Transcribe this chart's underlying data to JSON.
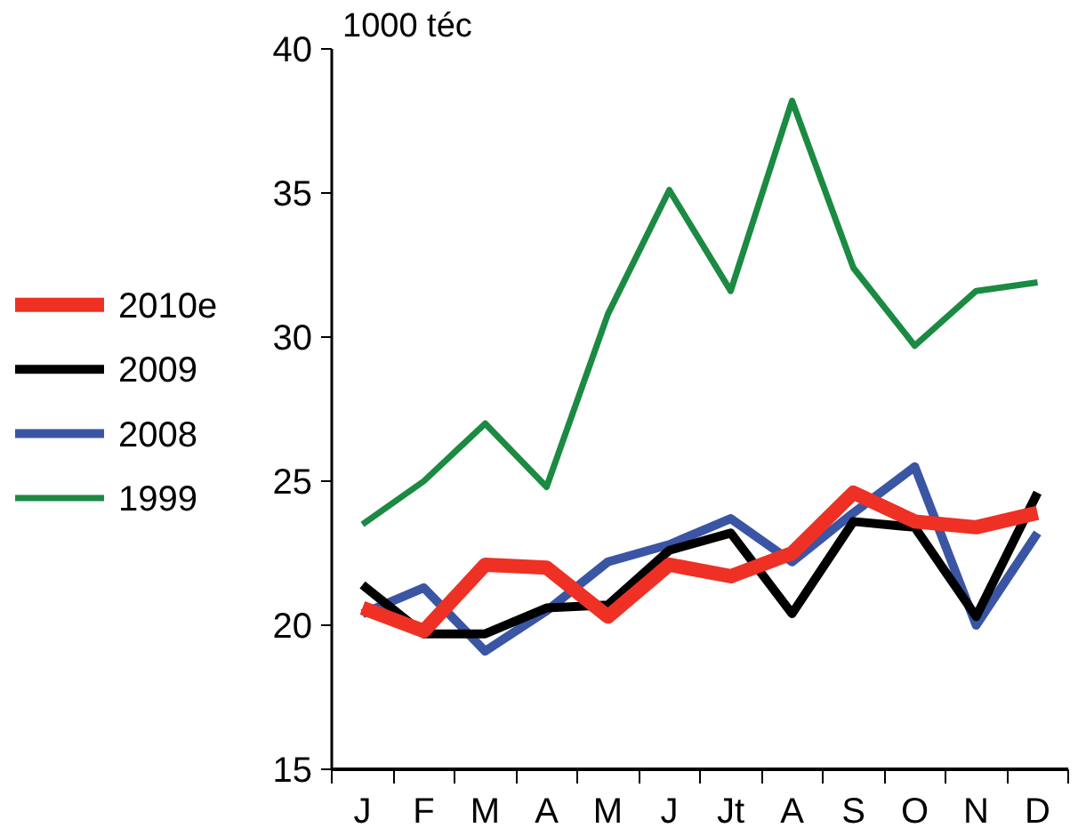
{
  "chart_data": {
    "type": "line",
    "ylabel": "1000 téc",
    "categories": [
      "J",
      "F",
      "M",
      "A",
      "M",
      "J",
      "Jt",
      "A",
      "S",
      "O",
      "N",
      "D"
    ],
    "ylim": [
      15,
      40
    ],
    "yticks": [
      15,
      20,
      25,
      30,
      35,
      40
    ],
    "grid": false,
    "legend": "left",
    "line_style": "solid",
    "marker": "none",
    "series": [
      {
        "name": "2010e",
        "color": "#ee3124",
        "values": [
          20.6,
          19.8,
          22.1,
          22.0,
          20.3,
          22.1,
          21.7,
          22.5,
          24.6,
          23.6,
          23.4,
          23.9
        ]
      },
      {
        "name": "2009",
        "color": "#000000",
        "values": [
          21.4,
          19.7,
          19.7,
          20.6,
          20.7,
          22.6,
          23.2,
          20.4,
          23.6,
          23.4,
          20.3,
          24.6
        ]
      },
      {
        "name": "2008",
        "color": "#3b55a5",
        "values": [
          20.4,
          21.3,
          19.1,
          20.5,
          22.2,
          22.8,
          23.7,
          22.2,
          23.9,
          25.5,
          20.0,
          23.2
        ]
      },
      {
        "name": "1999",
        "color": "#1b8a42",
        "values": [
          23.5,
          25.0,
          27.0,
          24.8,
          30.8,
          35.1,
          31.6,
          38.2,
          32.4,
          29.7,
          31.6,
          31.9
        ]
      }
    ]
  }
}
